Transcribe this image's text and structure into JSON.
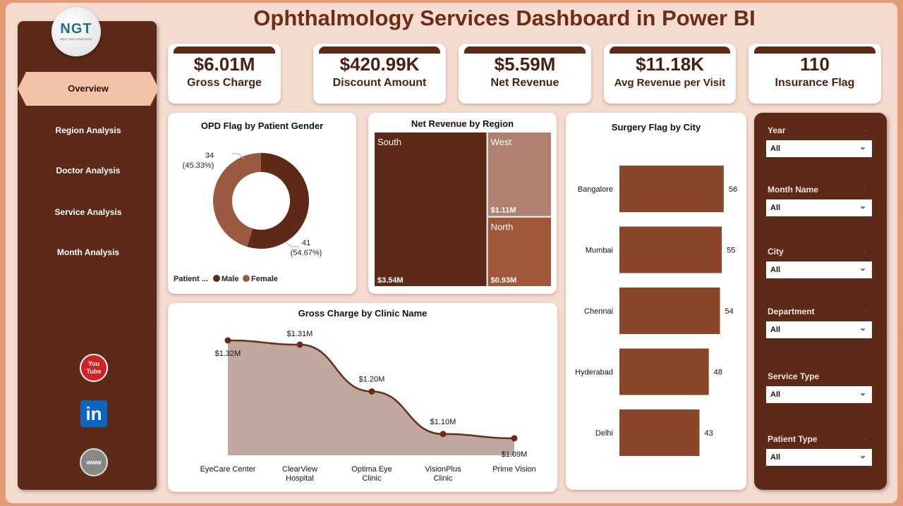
{
  "header": {
    "title": "Ophthalmology Services Dashboard in Power BI"
  },
  "logo": {
    "text": "NGT",
    "subtext": "NEXT GEN TEMPLATES"
  },
  "sidebar": {
    "items": [
      {
        "label": "Overview",
        "active": true
      },
      {
        "label": "Region Analysis"
      },
      {
        "label": "Doctor Analysis"
      },
      {
        "label": "Service Analysis"
      },
      {
        "label": "Month Analysis"
      }
    ],
    "social": [
      {
        "icon": "youtube-icon",
        "text": "You Tube"
      },
      {
        "icon": "linkedin-icon",
        "text": "in"
      },
      {
        "icon": "www-icon",
        "text": "www"
      }
    ]
  },
  "kpis": [
    {
      "value": "$6.01M",
      "label": "Gross Charge"
    },
    {
      "value": "$420.99K",
      "label": "Discount Amount"
    },
    {
      "value": "$5.59M",
      "label": "Net Revenue"
    },
    {
      "value": "$11.18K",
      "label": "Avg Revenue per Visit"
    },
    {
      "value": "110",
      "label": "Insurance Flag"
    }
  ],
  "colors": {
    "dark": "#5c2a16",
    "accent": "#8b4529",
    "female": "#9b5a40",
    "west": "#b08070",
    "north": "#a0583a",
    "area": "#c1a89e"
  },
  "chart_data": [
    {
      "type": "pie",
      "title": "OPD Flag by Patient Gender",
      "legend_title": "Patient ...",
      "legend_position": "bottom-left",
      "slices": [
        {
          "name": "Male",
          "value": 41,
          "label": "41",
          "pct": "(54.67%)"
        },
        {
          "name": "Female",
          "value": 34,
          "label": "34",
          "pct": "(45.33%)"
        }
      ]
    },
    {
      "type": "treemap",
      "title": "Net Revenue by Region",
      "items": [
        {
          "name": "South",
          "value": 3.54,
          "label": "$3.54M"
        },
        {
          "name": "West",
          "value": 1.11,
          "label": "$1.11M"
        },
        {
          "name": "North",
          "value": 0.93,
          "label": "$0.93M"
        }
      ]
    },
    {
      "type": "area",
      "title": "Gross Charge by Clinic Name",
      "categories": [
        "EyeCare Center",
        "ClearView Hospital",
        "Optima Eye Clinic",
        "VisionPlus Clinic",
        "Prime Vision"
      ],
      "values": [
        1.32,
        1.31,
        1.2,
        1.1,
        1.09
      ],
      "labels": [
        "$1.32M",
        "$1.31M",
        "$1.20M",
        "$1.10M",
        "$1.09M"
      ]
    },
    {
      "type": "bar",
      "orientation": "horizontal",
      "title": "Surgery Flag by City",
      "categories": [
        "Bangalore",
        "Mumbai",
        "Chennai",
        "Hyderabad",
        "Delhi"
      ],
      "values": [
        56,
        55,
        54,
        48,
        43
      ]
    }
  ],
  "filters": [
    {
      "label": "Year",
      "value": "All"
    },
    {
      "label": "Month Name",
      "value": "All"
    },
    {
      "label": "City",
      "value": "All"
    },
    {
      "label": "Department",
      "value": "All"
    },
    {
      "label": "Service Type",
      "value": "All"
    },
    {
      "label": "Patient Type",
      "value": "All"
    }
  ]
}
